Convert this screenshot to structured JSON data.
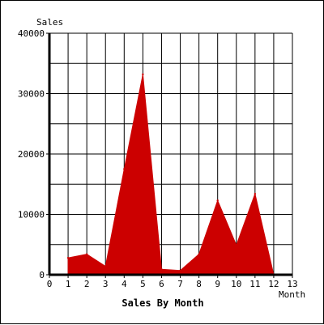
{
  "chart_data": {
    "type": "area",
    "title": "Sales By Month",
    "xlabel": "Month",
    "ylabel": "Sales",
    "x": [
      1,
      2,
      3,
      4,
      5,
      6,
      7,
      8,
      9,
      10,
      11,
      12
    ],
    "series": [
      {
        "name": "",
        "color": "#cc0000",
        "values": [
          2800,
          3400,
          1400,
          17500,
          33200,
          900,
          700,
          3400,
          12300,
          4900,
          13400,
          0
        ]
      }
    ],
    "xlim": [
      0,
      13
    ],
    "ylim": [
      0,
      40000
    ],
    "x_ticks": [
      "0",
      "1",
      "2",
      "3",
      "4",
      "5",
      "6",
      "7",
      "8",
      "9",
      "10",
      "11",
      "12",
      "13"
    ],
    "y_ticks": [
      "0",
      "10000",
      "20000",
      "30000",
      "40000"
    ],
    "grid": true,
    "grid_y_step": 5000,
    "colors": {
      "fill": "#cc0000",
      "grid": "#000000",
      "background": "#ffffff"
    }
  }
}
